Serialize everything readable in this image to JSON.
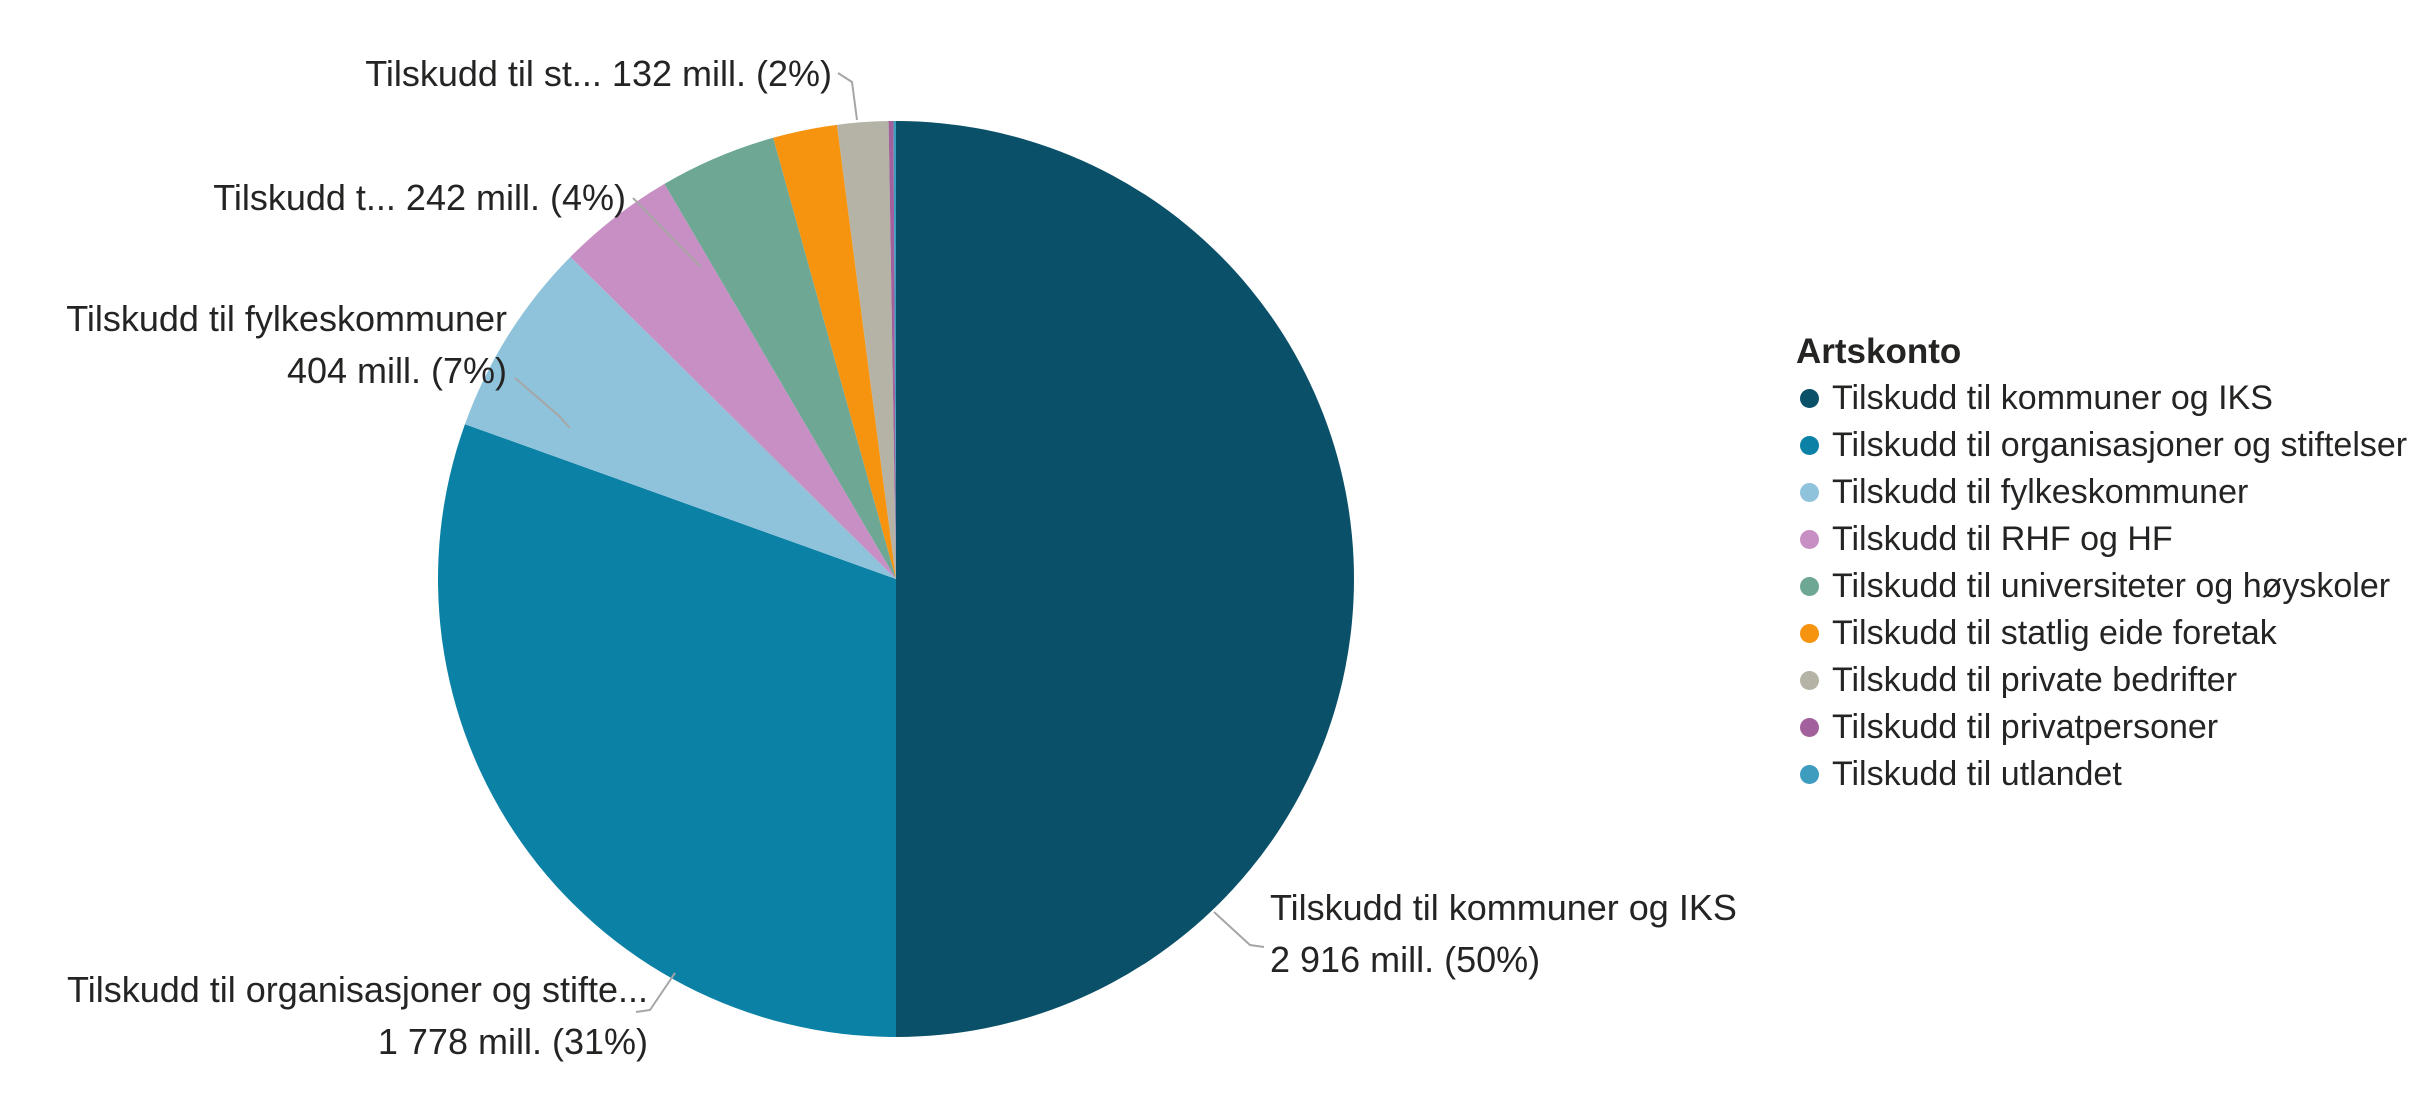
{
  "page": {
    "background": "#FFFFFF"
  },
  "colors": {
    "text": "#252423",
    "leader_line": "#A6A6A6",
    "background": "#FFFFFF"
  },
  "chart_data": {
    "type": "pie",
    "title": "",
    "legend_title": "Artskonto",
    "legend_position": "right",
    "unit": "mill.",
    "total_mill": 5832,
    "start_angle_deg": 0,
    "direction": "clockwise",
    "slices": [
      {
        "label": "Tilskudd til kommuner og IKS",
        "value_mill": 2916,
        "percent_shown": "50%",
        "color": "#0B5069",
        "value_labeled_on_chart": true
      },
      {
        "label": "Tilskudd til organisasjoner og stiftelser",
        "value_mill": 1778,
        "percent_shown": "31%",
        "color": "#0C81A6",
        "value_labeled_on_chart": true
      },
      {
        "label": "Tilskudd til fylkeskommuner",
        "value_mill": 404,
        "percent_shown": "7%",
        "color": "#8FC3DC",
        "value_labeled_on_chart": true
      },
      {
        "label": "Tilskudd til RHF og HF",
        "value_mill": 242,
        "percent_shown": "4%",
        "color": "#C78FC3",
        "value_labeled_on_chart": true
      },
      {
        "label": "Tilskudd til universiteter og høyskoler",
        "value_mill": 240,
        "percent_shown": "",
        "color": "#6FA795",
        "value_labeled_on_chart": false,
        "estimated": true
      },
      {
        "label": "Tilskudd til statlig eide foretak",
        "value_mill": 132,
        "percent_shown": "2%",
        "color": "#F6930F",
        "value_labeled_on_chart": true
      },
      {
        "label": "Tilskudd til private bedrifter",
        "value_mill": 105,
        "percent_shown": "",
        "color": "#B4B3A5",
        "value_labeled_on_chart": false,
        "estimated": true
      },
      {
        "label": "Tilskudd til privatpersoner",
        "value_mill": 10,
        "percent_shown": "",
        "color": "#A2609C",
        "value_labeled_on_chart": false,
        "estimated": true
      },
      {
        "label": "Tilskudd til utlandet",
        "value_mill": 5,
        "percent_shown": "",
        "color": "#3E9CBF",
        "value_labeled_on_chart": false,
        "estimated": true
      }
    ],
    "callouts": [
      {
        "lines": [
          "Tilskudd til st... 132 mill. (2%)"
        ],
        "align": "right"
      },
      {
        "lines": [
          "Tilskudd t... 242 mill. (4%)"
        ],
        "align": "right"
      },
      {
        "lines": [
          "Tilskudd til fylkeskommuner",
          "404 mill. (7%)"
        ],
        "align": "right"
      },
      {
        "lines": [
          "Tilskudd til organisasjoner og stifte...",
          "1 778 mill. (31%)"
        ],
        "align": "right"
      },
      {
        "lines": [
          "Tilskudd til kommuner og IKS",
          "2 916 mill. (50%)"
        ],
        "align": "left"
      }
    ]
  }
}
